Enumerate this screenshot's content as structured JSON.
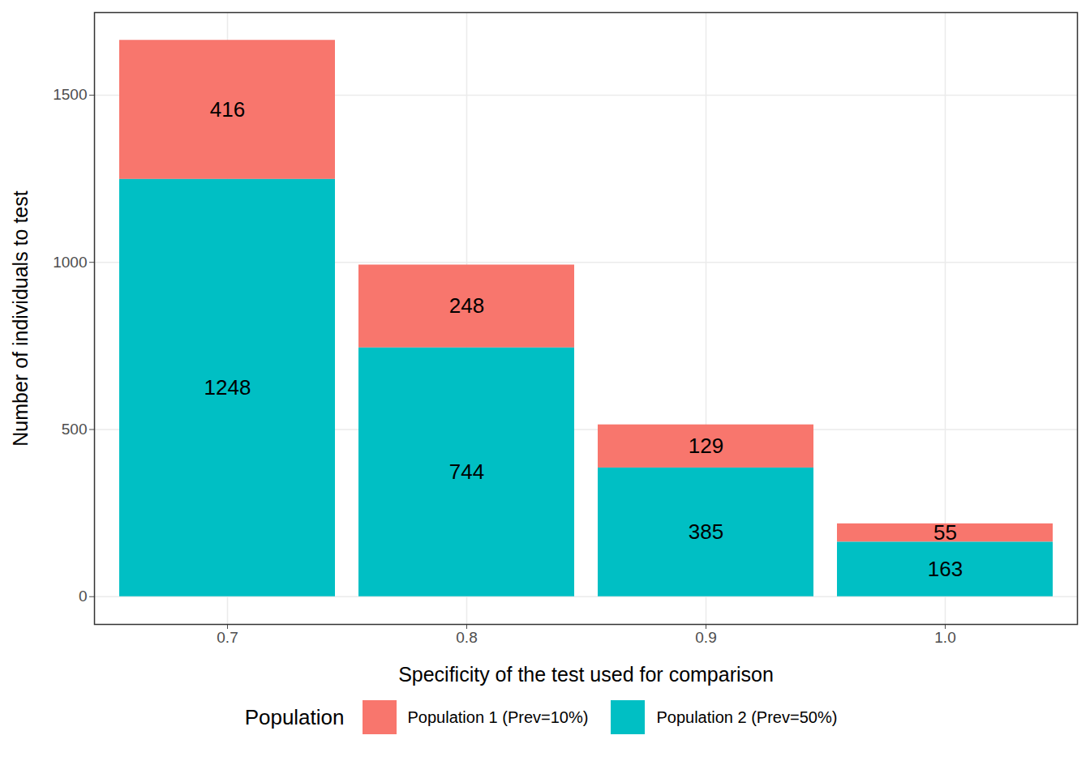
{
  "chart_data": {
    "type": "bar",
    "stacked": true,
    "x_label": "Specificity of the test used for comparison",
    "y_label": "Number of individuals to test",
    "categories": [
      "0.7",
      "0.8",
      "0.9",
      "1.0"
    ],
    "series": [
      {
        "name": "Population 1 (Prev=10%)",
        "color": "#F8766D",
        "values": [
          416,
          248,
          129,
          55
        ]
      },
      {
        "name": "Population 2 (Prev=50%)",
        "color": "#00BFC4",
        "values": [
          1248,
          744,
          385,
          163
        ]
      }
    ],
    "ylim": [
      -83,
      1747
    ],
    "yticks": [
      0,
      500,
      1000,
      1500
    ],
    "grid": true,
    "data_labels": true,
    "legend": "bottom",
    "legend_title": "Population"
  }
}
